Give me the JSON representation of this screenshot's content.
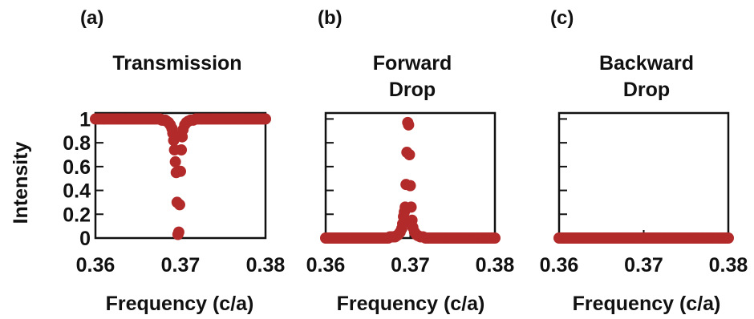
{
  "chart_data": [
    {
      "type": "scatter",
      "panel_label": "(a)",
      "title_lines": [
        "Transmission"
      ],
      "xlabel": "Frequency (c/a)",
      "ylabel": "Intensity",
      "xlim": [
        0.36,
        0.38
      ],
      "ylim": [
        0,
        1.05
      ],
      "xticks": [
        "0.36",
        "0.37",
        "0.38"
      ],
      "yticks": [
        "0",
        "0.2",
        "0.4",
        "0.6",
        "0.8",
        "1"
      ],
      "series_color": "#b22a2a",
      "dip_center": 0.3695,
      "points": [
        [
          0.36,
          1.0
        ],
        [
          0.3602,
          1.0
        ],
        [
          0.3604,
          1.0
        ],
        [
          0.3606,
          1.0
        ],
        [
          0.3608,
          1.0
        ],
        [
          0.361,
          1.0
        ],
        [
          0.3612,
          1.0
        ],
        [
          0.3614,
          1.0
        ],
        [
          0.3616,
          1.0
        ],
        [
          0.3618,
          1.0
        ],
        [
          0.362,
          1.0
        ],
        [
          0.3622,
          1.0
        ],
        [
          0.3624,
          1.0
        ],
        [
          0.3626,
          1.0
        ],
        [
          0.3628,
          1.0
        ],
        [
          0.363,
          1.0
        ],
        [
          0.3632,
          1.0
        ],
        [
          0.3634,
          1.0
        ],
        [
          0.3636,
          1.0
        ],
        [
          0.3638,
          1.0
        ],
        [
          0.364,
          1.0
        ],
        [
          0.3642,
          1.0
        ],
        [
          0.3644,
          1.0
        ],
        [
          0.3646,
          1.0
        ],
        [
          0.3648,
          1.0
        ],
        [
          0.365,
          1.0
        ],
        [
          0.3652,
          1.0
        ],
        [
          0.3654,
          1.0
        ],
        [
          0.3656,
          1.0
        ],
        [
          0.3658,
          1.0
        ],
        [
          0.366,
          1.0
        ],
        [
          0.3662,
          1.0
        ],
        [
          0.3664,
          1.0
        ],
        [
          0.3666,
          1.0
        ],
        [
          0.3668,
          1.0
        ],
        [
          0.367,
          1.0
        ],
        [
          0.3672,
          1.0
        ],
        [
          0.3674,
          1.0
        ],
        [
          0.3676,
          1.0
        ],
        [
          0.3678,
          0.99
        ],
        [
          0.368,
          0.99
        ],
        [
          0.3682,
          0.99
        ],
        [
          0.3684,
          0.98
        ],
        [
          0.3686,
          0.97
        ],
        [
          0.3688,
          0.95
        ],
        [
          0.369,
          0.92
        ],
        [
          0.3691,
          0.88
        ],
        [
          0.3692,
          0.82
        ],
        [
          0.3693,
          0.74
        ],
        [
          0.3694,
          0.64
        ],
        [
          0.3695,
          0.55
        ],
        [
          0.3696,
          0.3
        ],
        [
          0.3697,
          0.03
        ],
        [
          0.3698,
          0.05
        ],
        [
          0.3699,
          0.28
        ],
        [
          0.37,
          0.56
        ],
        [
          0.3701,
          0.74
        ],
        [
          0.3702,
          0.85
        ],
        [
          0.3703,
          0.91
        ],
        [
          0.3705,
          0.95
        ],
        [
          0.3707,
          0.97
        ],
        [
          0.3709,
          0.98
        ],
        [
          0.3712,
          0.99
        ],
        [
          0.3715,
          0.99
        ],
        [
          0.3718,
          1.0
        ],
        [
          0.372,
          1.0
        ],
        [
          0.3722,
          1.0
        ],
        [
          0.3724,
          1.0
        ],
        [
          0.3726,
          1.0
        ],
        [
          0.3728,
          1.0
        ],
        [
          0.373,
          1.0
        ],
        [
          0.3732,
          1.0
        ],
        [
          0.3734,
          1.0
        ],
        [
          0.3736,
          1.0
        ],
        [
          0.3738,
          1.0
        ],
        [
          0.374,
          1.0
        ],
        [
          0.3742,
          1.0
        ],
        [
          0.3744,
          1.0
        ],
        [
          0.3746,
          1.0
        ],
        [
          0.3748,
          1.0
        ],
        [
          0.375,
          1.0
        ],
        [
          0.3752,
          1.0
        ],
        [
          0.3754,
          1.0
        ],
        [
          0.3756,
          1.0
        ],
        [
          0.3758,
          1.0
        ],
        [
          0.376,
          1.0
        ],
        [
          0.3762,
          1.0
        ],
        [
          0.3764,
          1.0
        ],
        [
          0.3766,
          1.0
        ],
        [
          0.3768,
          1.0
        ],
        [
          0.377,
          1.0
        ],
        [
          0.3772,
          1.0
        ],
        [
          0.3774,
          1.0
        ],
        [
          0.3776,
          1.0
        ],
        [
          0.3778,
          1.0
        ],
        [
          0.378,
          1.0
        ],
        [
          0.3782,
          1.0
        ],
        [
          0.3784,
          1.0
        ],
        [
          0.3786,
          1.0
        ],
        [
          0.3788,
          1.0
        ],
        [
          0.379,
          1.0
        ],
        [
          0.3792,
          1.0
        ],
        [
          0.3794,
          1.0
        ],
        [
          0.3796,
          1.0
        ],
        [
          0.3798,
          1.0
        ],
        [
          0.38,
          1.0
        ]
      ]
    },
    {
      "type": "scatter",
      "panel_label": "(b)",
      "title_lines": [
        "Forward",
        "Drop"
      ],
      "xlabel": "Frequency (c/a)",
      "ylabel": "",
      "xlim": [
        0.36,
        0.38
      ],
      "ylim": [
        0,
        1.05
      ],
      "xticks": [
        "0.36",
        "0.37",
        "0.38"
      ],
      "yticks": [
        "",
        "",
        "",
        "",
        "",
        ""
      ],
      "series_color": "#b22a2a",
      "points": [
        [
          0.36,
          0.0
        ],
        [
          0.3602,
          0.0
        ],
        [
          0.3604,
          0.0
        ],
        [
          0.3606,
          0.0
        ],
        [
          0.3608,
          0.0
        ],
        [
          0.361,
          0.0
        ],
        [
          0.3612,
          0.0
        ],
        [
          0.3614,
          0.0
        ],
        [
          0.3616,
          0.0
        ],
        [
          0.3618,
          0.0
        ],
        [
          0.362,
          0.0
        ],
        [
          0.3622,
          0.0
        ],
        [
          0.3624,
          0.0
        ],
        [
          0.3626,
          0.0
        ],
        [
          0.3628,
          0.0
        ],
        [
          0.363,
          0.0
        ],
        [
          0.3632,
          0.0
        ],
        [
          0.3634,
          0.0
        ],
        [
          0.3636,
          0.0
        ],
        [
          0.3638,
          0.0
        ],
        [
          0.364,
          0.0
        ],
        [
          0.3642,
          0.0
        ],
        [
          0.3644,
          0.0
        ],
        [
          0.3646,
          0.0
        ],
        [
          0.3648,
          0.0
        ],
        [
          0.365,
          0.0
        ],
        [
          0.3652,
          0.0
        ],
        [
          0.3654,
          0.0
        ],
        [
          0.3656,
          0.0
        ],
        [
          0.3658,
          0.0
        ],
        [
          0.366,
          0.0
        ],
        [
          0.3662,
          0.0
        ],
        [
          0.3664,
          0.0
        ],
        [
          0.3666,
          0.0
        ],
        [
          0.3668,
          0.0
        ],
        [
          0.367,
          0.0
        ],
        [
          0.3672,
          0.0
        ],
        [
          0.3674,
          0.0
        ],
        [
          0.3676,
          0.01
        ],
        [
          0.3678,
          0.01
        ],
        [
          0.368,
          0.01
        ],
        [
          0.3682,
          0.01
        ],
        [
          0.3684,
          0.02
        ],
        [
          0.3686,
          0.03
        ],
        [
          0.3688,
          0.05
        ],
        [
          0.369,
          0.08
        ],
        [
          0.3691,
          0.12
        ],
        [
          0.3692,
          0.18
        ],
        [
          0.3693,
          0.22
        ],
        [
          0.3694,
          0.26
        ],
        [
          0.3695,
          0.45
        ],
        [
          0.3696,
          0.72
        ],
        [
          0.3697,
          0.97
        ],
        [
          0.3698,
          0.95
        ],
        [
          0.3699,
          0.7
        ],
        [
          0.37,
          0.44
        ],
        [
          0.3701,
          0.26
        ],
        [
          0.3702,
          0.15
        ],
        [
          0.3703,
          0.09
        ],
        [
          0.3705,
          0.05
        ],
        [
          0.3707,
          0.03
        ],
        [
          0.3709,
          0.02
        ],
        [
          0.3712,
          0.01
        ],
        [
          0.3715,
          0.01
        ],
        [
          0.3718,
          0.0
        ],
        [
          0.372,
          0.0
        ],
        [
          0.3722,
          0.0
        ],
        [
          0.3724,
          0.0
        ],
        [
          0.3726,
          0.0
        ],
        [
          0.3728,
          0.0
        ],
        [
          0.373,
          0.0
        ],
        [
          0.3732,
          0.0
        ],
        [
          0.3734,
          0.0
        ],
        [
          0.3736,
          0.0
        ],
        [
          0.3738,
          0.0
        ],
        [
          0.374,
          0.0
        ],
        [
          0.3742,
          0.0
        ],
        [
          0.3744,
          0.0
        ],
        [
          0.3746,
          0.0
        ],
        [
          0.3748,
          0.0
        ],
        [
          0.375,
          0.0
        ],
        [
          0.3752,
          0.0
        ],
        [
          0.3754,
          0.0
        ],
        [
          0.3756,
          0.0
        ],
        [
          0.3758,
          0.0
        ],
        [
          0.376,
          0.0
        ],
        [
          0.3762,
          0.0
        ],
        [
          0.3764,
          0.0
        ],
        [
          0.3766,
          0.0
        ],
        [
          0.3768,
          0.0
        ],
        [
          0.377,
          0.0
        ],
        [
          0.3772,
          0.0
        ],
        [
          0.3774,
          0.0
        ],
        [
          0.3776,
          0.0
        ],
        [
          0.3778,
          0.0
        ],
        [
          0.378,
          0.0
        ],
        [
          0.3782,
          0.0
        ],
        [
          0.3784,
          0.0
        ],
        [
          0.3786,
          0.0
        ],
        [
          0.3788,
          0.0
        ],
        [
          0.379,
          0.0
        ],
        [
          0.3792,
          0.0
        ],
        [
          0.3794,
          0.0
        ],
        [
          0.3796,
          0.0
        ],
        [
          0.3798,
          0.0
        ],
        [
          0.38,
          0.0
        ]
      ]
    },
    {
      "type": "scatter",
      "panel_label": "(c)",
      "title_lines": [
        "Backward",
        "Drop"
      ],
      "xlabel": "Frequency (c/a)",
      "ylabel": "",
      "xlim": [
        0.36,
        0.38
      ],
      "ylim": [
        0,
        1.05
      ],
      "xticks": [
        "0.36",
        "0.37",
        "0.38"
      ],
      "yticks": [
        "",
        "",
        "",
        "",
        "",
        ""
      ],
      "series_color": "#b22a2a",
      "points": [
        [
          0.36,
          0.0
        ],
        [
          0.3602,
          0.0
        ],
        [
          0.3604,
          0.0
        ],
        [
          0.3606,
          0.0
        ],
        [
          0.3608,
          0.0
        ],
        [
          0.361,
          0.0
        ],
        [
          0.3612,
          0.0
        ],
        [
          0.3614,
          0.0
        ],
        [
          0.3616,
          0.0
        ],
        [
          0.3618,
          0.0
        ],
        [
          0.362,
          0.0
        ],
        [
          0.3622,
          0.0
        ],
        [
          0.3624,
          0.0
        ],
        [
          0.3626,
          0.0
        ],
        [
          0.3628,
          0.0
        ],
        [
          0.363,
          0.0
        ],
        [
          0.3632,
          0.0
        ],
        [
          0.3634,
          0.0
        ],
        [
          0.3636,
          0.0
        ],
        [
          0.3638,
          0.0
        ],
        [
          0.364,
          0.0
        ],
        [
          0.3642,
          0.0
        ],
        [
          0.3644,
          0.0
        ],
        [
          0.3646,
          0.0
        ],
        [
          0.3648,
          0.0
        ],
        [
          0.365,
          0.0
        ],
        [
          0.3652,
          0.0
        ],
        [
          0.3654,
          0.0
        ],
        [
          0.3656,
          0.0
        ],
        [
          0.3658,
          0.0
        ],
        [
          0.366,
          0.0
        ],
        [
          0.3662,
          0.0
        ],
        [
          0.3664,
          0.0
        ],
        [
          0.3666,
          0.0
        ],
        [
          0.3668,
          0.0
        ],
        [
          0.367,
          0.0
        ],
        [
          0.3672,
          0.0
        ],
        [
          0.3674,
          0.0
        ],
        [
          0.3676,
          0.0
        ],
        [
          0.3678,
          0.0
        ],
        [
          0.368,
          0.0
        ],
        [
          0.3682,
          0.0
        ],
        [
          0.3684,
          0.0
        ],
        [
          0.3686,
          0.0
        ],
        [
          0.3688,
          0.0
        ],
        [
          0.369,
          0.0
        ],
        [
          0.3692,
          0.0
        ],
        [
          0.3694,
          0.0
        ],
        [
          0.3696,
          0.0
        ],
        [
          0.3698,
          0.0
        ],
        [
          0.37,
          0.0
        ],
        [
          0.3702,
          0.0
        ],
        [
          0.3704,
          0.0
        ],
        [
          0.3706,
          0.0
        ],
        [
          0.3708,
          0.0
        ],
        [
          0.371,
          0.0
        ],
        [
          0.3712,
          0.0
        ],
        [
          0.3714,
          0.0
        ],
        [
          0.3716,
          0.0
        ],
        [
          0.3718,
          0.0
        ],
        [
          0.372,
          0.0
        ],
        [
          0.3722,
          0.0
        ],
        [
          0.3724,
          0.0
        ],
        [
          0.3726,
          0.0
        ],
        [
          0.3728,
          0.0
        ],
        [
          0.373,
          0.0
        ],
        [
          0.3732,
          0.0
        ],
        [
          0.3734,
          0.0
        ],
        [
          0.3736,
          0.0
        ],
        [
          0.3738,
          0.0
        ],
        [
          0.374,
          0.0
        ],
        [
          0.3742,
          0.0
        ],
        [
          0.3744,
          0.0
        ],
        [
          0.3746,
          0.0
        ],
        [
          0.3748,
          0.0
        ],
        [
          0.375,
          0.0
        ],
        [
          0.3752,
          0.0
        ],
        [
          0.3754,
          0.0
        ],
        [
          0.3756,
          0.0
        ],
        [
          0.3758,
          0.0
        ],
        [
          0.376,
          0.0
        ],
        [
          0.3762,
          0.0
        ],
        [
          0.3764,
          0.0
        ],
        [
          0.3766,
          0.0
        ],
        [
          0.3768,
          0.0
        ],
        [
          0.377,
          0.0
        ],
        [
          0.3772,
          0.0
        ],
        [
          0.3774,
          0.0
        ],
        [
          0.3776,
          0.0
        ],
        [
          0.3778,
          0.0
        ],
        [
          0.378,
          0.0
        ],
        [
          0.3782,
          0.0
        ],
        [
          0.3784,
          0.0
        ],
        [
          0.3786,
          0.0
        ],
        [
          0.3788,
          0.0
        ],
        [
          0.379,
          0.0
        ],
        [
          0.3792,
          0.0
        ],
        [
          0.3794,
          0.0
        ],
        [
          0.3796,
          0.0
        ],
        [
          0.3798,
          0.0
        ],
        [
          0.38,
          0.0
        ]
      ]
    }
  ]
}
